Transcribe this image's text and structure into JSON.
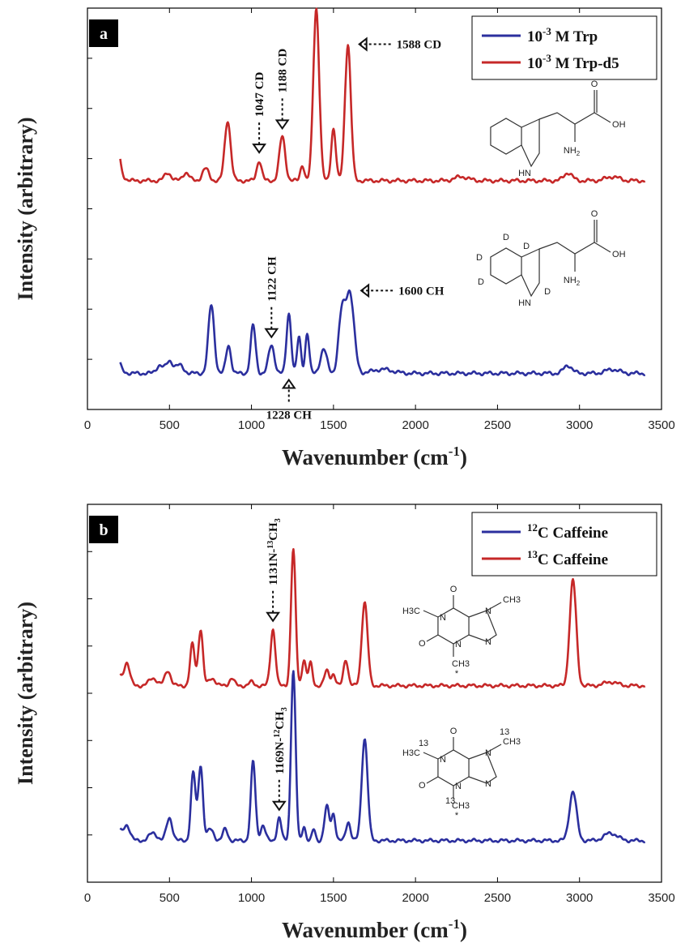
{
  "chart_data": [
    {
      "panel_label": "a",
      "type": "line",
      "xlabel_main": "Wavenumber (cm",
      "xlabel_sup": "-1",
      "xlabel_end": ")",
      "ylabel": "Intensity (arbitrary)",
      "xlim": [
        0,
        3500
      ],
      "x_ticks": [
        0,
        500,
        1000,
        1500,
        2000,
        2500,
        3000,
        3500
      ],
      "ylim": [
        0,
        1
      ],
      "grid": false,
      "legend_position": "top-right",
      "series": [
        {
          "name_pre": "10",
          "name_sup": "-3",
          "name_post": " M Trp",
          "color": "#2b2f9e",
          "baseline": 0.09,
          "peaks": [
            [
              440,
              0.02,
              20
            ],
            [
              500,
              0.03,
              20
            ],
            [
              560,
              0.02,
              25
            ],
            [
              755,
              0.17,
              18
            ],
            [
              860,
              0.07,
              15
            ],
            [
              1010,
              0.12,
              15
            ],
            [
              1122,
              0.07,
              18
            ],
            [
              1228,
              0.15,
              14
            ],
            [
              1290,
              0.09,
              12
            ],
            [
              1340,
              0.1,
              12
            ],
            [
              1440,
              0.06,
              20
            ],
            [
              1550,
              0.14,
              20
            ],
            [
              1600,
              0.2,
              25
            ],
            [
              1800,
              0.01,
              60
            ],
            [
              2930,
              0.02,
              25
            ],
            [
              3200,
              0.01,
              40
            ]
          ],
          "annotations": [
            {
              "label": "1122 CH",
              "x": 1122,
              "dir": "down"
            },
            {
              "label": "1600 CH",
              "x": 1600,
              "dir": "left"
            },
            {
              "label": "1228 CH",
              "x": 1228,
              "dir": "up"
            }
          ]
        },
        {
          "name_pre": "10",
          "name_sup": "-3",
          "name_post": " M Trp-d5",
          "color": "#c62828",
          "baseline": 0.57,
          "peaks": [
            [
              490,
              0.02,
              20
            ],
            [
              600,
              0.02,
              20
            ],
            [
              720,
              0.03,
              20
            ],
            [
              855,
              0.15,
              18
            ],
            [
              1047,
              0.05,
              15
            ],
            [
              1188,
              0.11,
              18
            ],
            [
              1310,
              0.04,
              12
            ],
            [
              1395,
              0.43,
              18
            ],
            [
              1500,
              0.13,
              14
            ],
            [
              1588,
              0.34,
              18
            ],
            [
              2280,
              0.01,
              40
            ],
            [
              2930,
              0.02,
              25
            ],
            [
              3200,
              0.01,
              40
            ]
          ],
          "annotations": [
            {
              "label": "1047 CD",
              "x": 1047,
              "dir": "down"
            },
            {
              "label": "1188 CD",
              "x": 1188,
              "dir": "down"
            },
            {
              "label": "1588 CD",
              "x": 1588,
              "dir": "left"
            }
          ]
        }
      ],
      "molecules": [
        {
          "kind": "trp",
          "labels": [
            "O",
            "OH",
            "HN",
            "NH2"
          ]
        },
        {
          "kind": "trp-d5",
          "labels": [
            "O",
            "OH",
            "HN",
            "NH2",
            "D",
            "D",
            "D",
            "D",
            "D"
          ]
        }
      ]
    },
    {
      "panel_label": "b",
      "type": "line",
      "xlabel_main": "Wavenumber (cm",
      "xlabel_sup": "-1",
      "xlabel_end": ")",
      "ylabel": "Intensity (arbitrary)",
      "xlim": [
        0,
        3500
      ],
      "x_ticks": [
        0,
        500,
        1000,
        1500,
        2000,
        2500,
        3000,
        3500
      ],
      "ylim": [
        0,
        1
      ],
      "grid": false,
      "legend_position": "top-right",
      "series": [
        {
          "name_pre": "",
          "name_sup": "12",
          "name_post": "C Caffeine",
          "color": "#2b2f9e",
          "baseline": 0.11,
          "peaks": [
            [
              240,
              0.04,
              20
            ],
            [
              400,
              0.02,
              25
            ],
            [
              500,
              0.06,
              18
            ],
            [
              645,
              0.18,
              14
            ],
            [
              690,
              0.2,
              14
            ],
            [
              750,
              0.03,
              20
            ],
            [
              840,
              0.03,
              15
            ],
            [
              1010,
              0.21,
              14
            ],
            [
              1070,
              0.04,
              15
            ],
            [
              1169,
              0.06,
              13
            ],
            [
              1255,
              0.45,
              14
            ],
            [
              1320,
              0.04,
              10
            ],
            [
              1380,
              0.03,
              10
            ],
            [
              1460,
              0.09,
              15
            ],
            [
              1500,
              0.07,
              12
            ],
            [
              1590,
              0.05,
              14
            ],
            [
              1690,
              0.27,
              18
            ],
            [
              2960,
              0.13,
              22
            ],
            [
              3190,
              0.02,
              40
            ]
          ],
          "annotations": [
            {
              "label_pre": "1169N-",
              "label_sup": "12",
              "label_post": "CH",
              "label_sub": "3",
              "x": 1169,
              "dir": "down"
            }
          ]
        },
        {
          "name_pre": "",
          "name_sup": "13",
          "name_post": "C Caffeine",
          "color": "#c62828",
          "baseline": 0.52,
          "peaks": [
            [
              240,
              0.06,
              18
            ],
            [
              400,
              0.02,
              25
            ],
            [
              490,
              0.04,
              18
            ],
            [
              640,
              0.11,
              14
            ],
            [
              690,
              0.15,
              14
            ],
            [
              760,
              0.02,
              20
            ],
            [
              880,
              0.02,
              15
            ],
            [
              1000,
              0.01,
              15
            ],
            [
              1131,
              0.15,
              15
            ],
            [
              1255,
              0.36,
              14
            ],
            [
              1320,
              0.07,
              12
            ],
            [
              1360,
              0.06,
              12
            ],
            [
              1460,
              0.04,
              15
            ],
            [
              1500,
              0.03,
              12
            ],
            [
              1575,
              0.07,
              14
            ],
            [
              1690,
              0.22,
              18
            ],
            [
              2960,
              0.28,
              20
            ],
            [
              3190,
              0.01,
              40
            ]
          ],
          "annotations": [
            {
              "label_pre": "1131N-",
              "label_sup": "13",
              "label_post": "CH",
              "label_sub": "3",
              "x": 1131,
              "dir": "down"
            }
          ]
        }
      ],
      "molecules": [
        {
          "kind": "caffeine",
          "labels": [
            "O",
            "CH3",
            "H3C",
            "N",
            "N",
            "N",
            "N",
            "O",
            "CH3",
            "*"
          ]
        },
        {
          "kind": "caffeine-13c",
          "labels": [
            "O",
            "13",
            "CH3",
            "13",
            "H3C",
            "N",
            "N",
            "N",
            "N",
            "O",
            "13",
            "CH3",
            "*"
          ]
        }
      ]
    }
  ]
}
